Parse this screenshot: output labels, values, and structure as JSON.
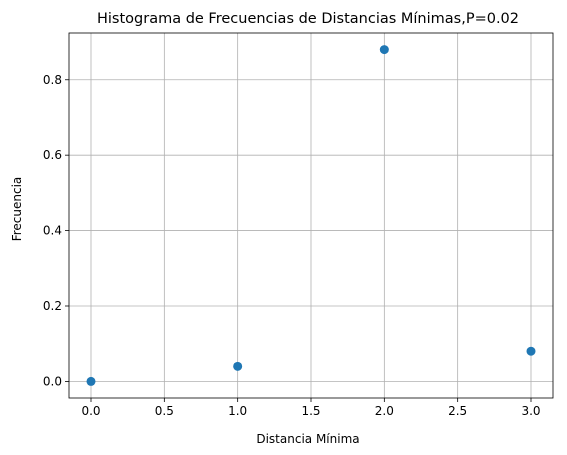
{
  "chart_data": {
    "type": "scatter",
    "title": "Histograma de Frecuencias de Distancias Mínimas,P=0.02",
    "xlabel": "Distancia Mínima",
    "ylabel": "Frecuencia",
    "x": [
      0,
      1,
      2,
      3
    ],
    "y": [
      0.0,
      0.04,
      0.88,
      0.08
    ],
    "xlim": [
      -0.15,
      3.15
    ],
    "ylim": [
      -0.044,
      0.924
    ],
    "xticks": [
      0.0,
      0.5,
      1.0,
      1.5,
      2.0,
      2.5,
      3.0
    ],
    "xtick_labels": [
      "0.0",
      "0.5",
      "1.0",
      "1.5",
      "2.0",
      "2.5",
      "3.0"
    ],
    "yticks": [
      0.0,
      0.2,
      0.4,
      0.6,
      0.8
    ],
    "ytick_labels": [
      "0.0",
      "0.2",
      "0.4",
      "0.6",
      "0.8"
    ],
    "grid": true,
    "marker_color": "#1f77b4",
    "grid_color": "#b0b0b0"
  }
}
